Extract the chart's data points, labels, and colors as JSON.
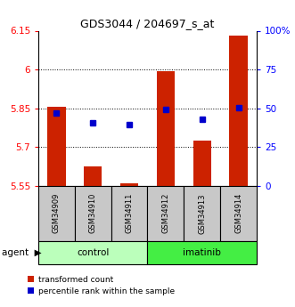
{
  "title": "GDS3044 / 204697_s_at",
  "categories": [
    "GSM34909",
    "GSM34910",
    "GSM34911",
    "GSM34912",
    "GSM34913",
    "GSM34914"
  ],
  "red_values": [
    5.855,
    5.625,
    5.558,
    5.995,
    5.725,
    6.13
  ],
  "blue_values": [
    5.83,
    5.795,
    5.787,
    5.845,
    5.808,
    5.852
  ],
  "ylim_left": [
    5.55,
    6.15
  ],
  "ylim_right": [
    0,
    100
  ],
  "yticks_left": [
    5.55,
    5.7,
    5.85,
    6.0,
    6.15
  ],
  "ytick_labels_left": [
    "5.55",
    "5.7",
    "5.85",
    "6",
    "6.15"
  ],
  "yticks_right": [
    0,
    25,
    50,
    75,
    100
  ],
  "ytick_labels_right": [
    "0",
    "25",
    "50",
    "75",
    "100%"
  ],
  "hlines": [
    5.7,
    5.85,
    6.0
  ],
  "groups": [
    {
      "label": "control",
      "indices": [
        0,
        1,
        2
      ],
      "color": "#bbffbb"
    },
    {
      "label": "imatinib",
      "indices": [
        3,
        4,
        5
      ],
      "color": "#44ee44"
    }
  ],
  "legend_red": "transformed count",
  "legend_blue": "percentile rank within the sample",
  "bar_width": 0.5,
  "red_color": "#cc2200",
  "blue_color": "#0000cc",
  "bar_bottom": 5.55
}
